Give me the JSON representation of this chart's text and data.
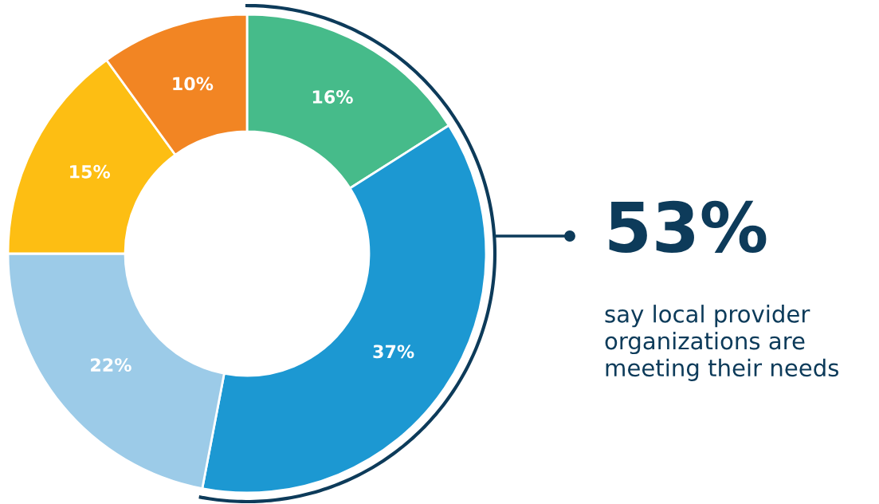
{
  "chart_data": {
    "type": "donut",
    "categories": [
      null,
      null,
      null,
      null,
      null
    ],
    "values": [
      16,
      37,
      22,
      15,
      10
    ],
    "colors": [
      "#46bb8a",
      "#1c98d2",
      "#9ccbe8",
      "#fdbe13",
      "#f28523"
    ],
    "value_labels": [
      "16%",
      "37%",
      "22%",
      "15%",
      "10%"
    ],
    "annotations": [
      "53%",
      "say local provider\norganizations are\nmeeting their needs"
    ]
  }
}
